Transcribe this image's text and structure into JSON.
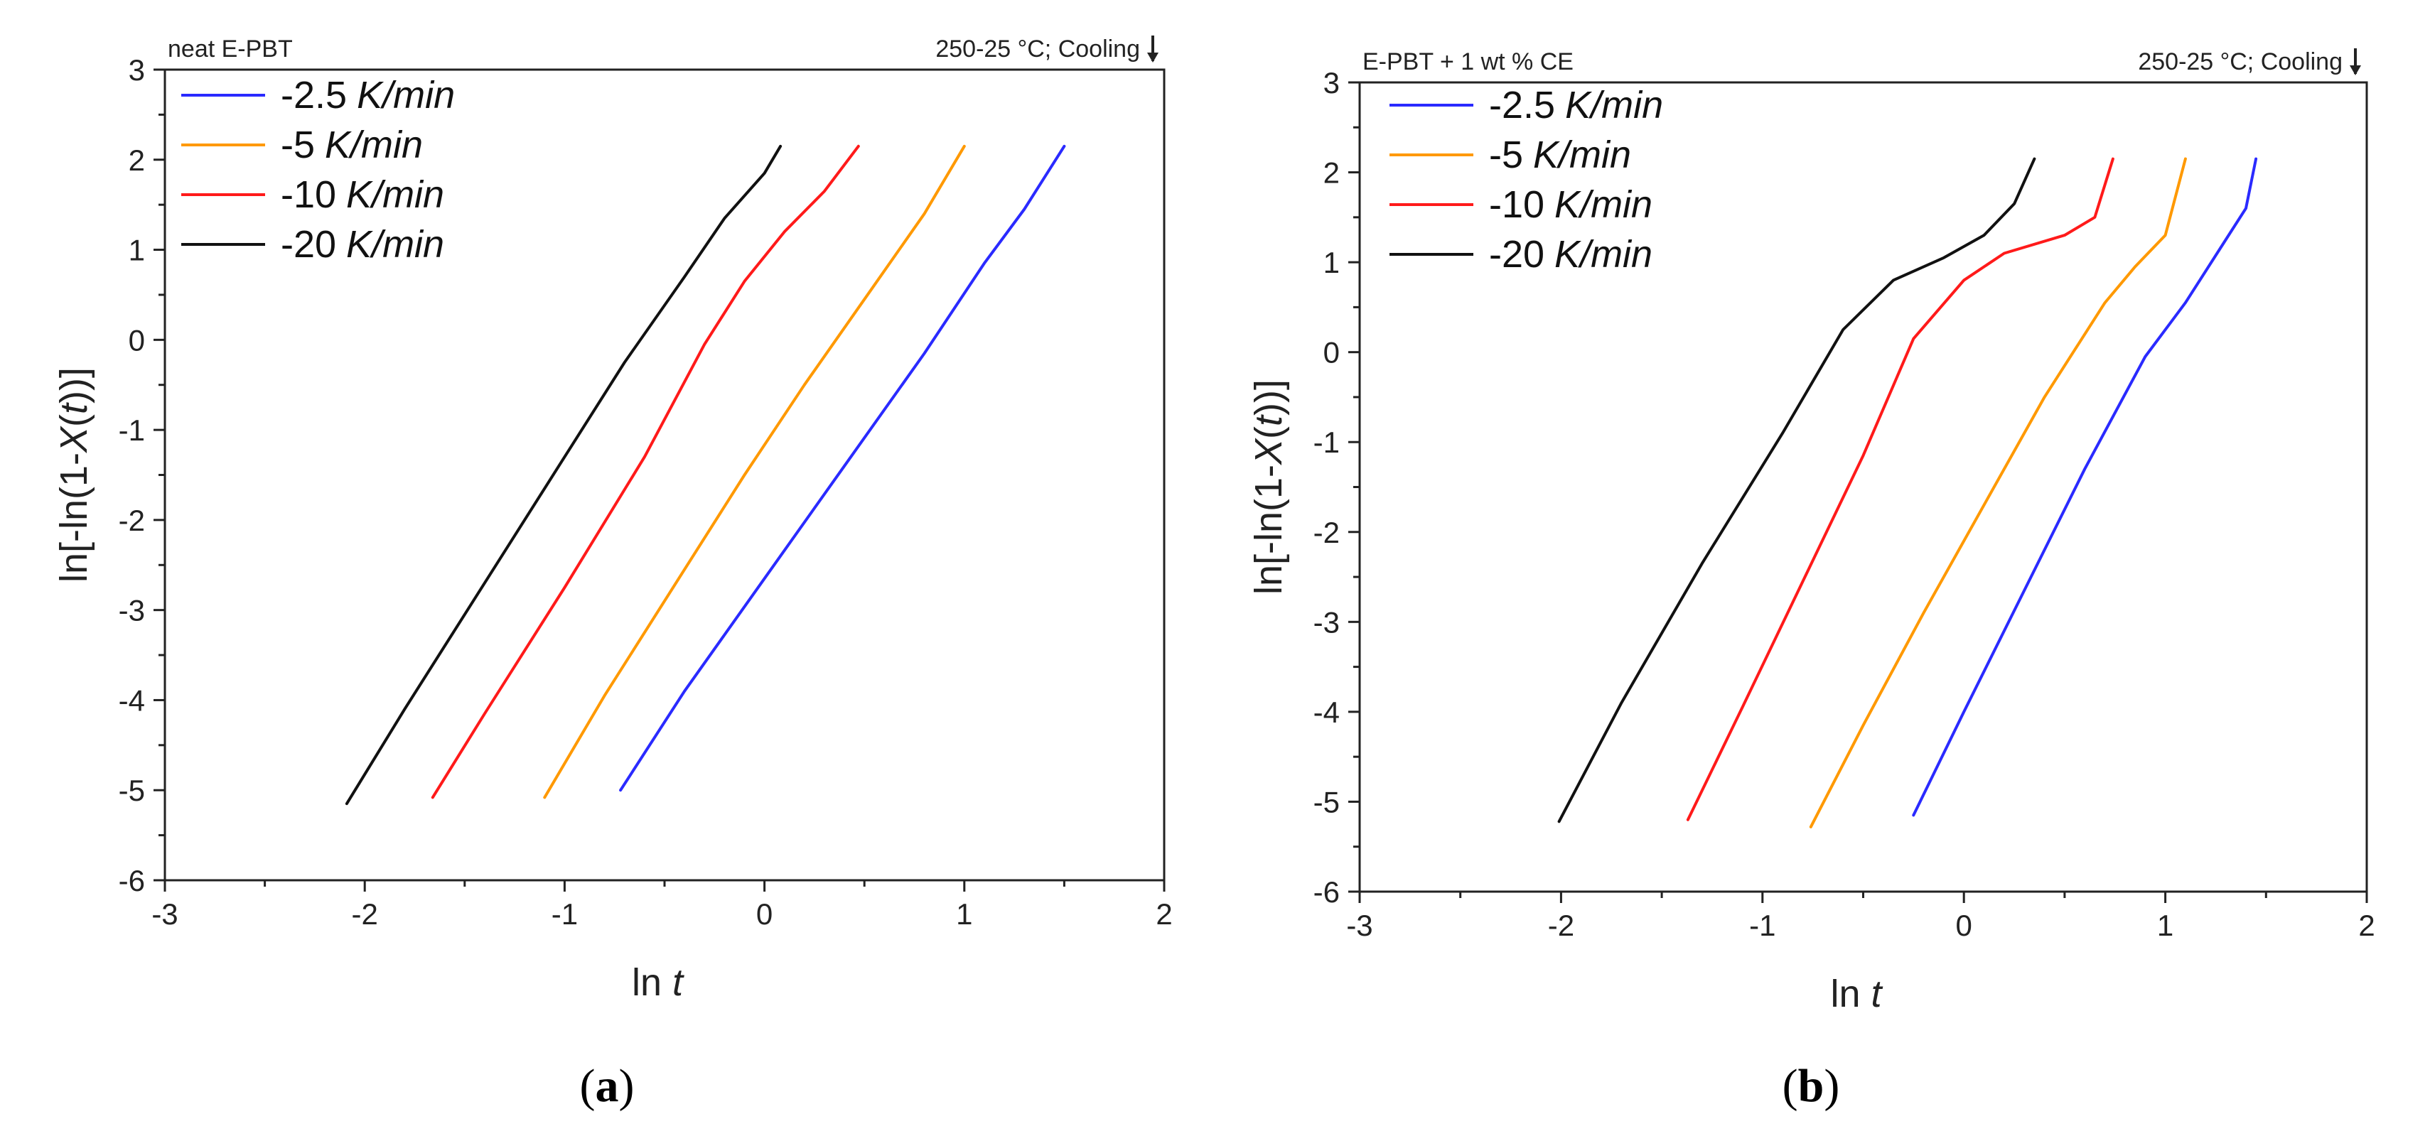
{
  "chart_data": [
    {
      "type": "line",
      "panel_label": "a",
      "top_left_note": "neat E-PBT",
      "top_right_note": "250-25 °C; Cooling",
      "xlabel_main": "ln ",
      "xlabel_var": "t",
      "ylabel_main": "ln[-ln(1-",
      "ylabel_var_x": "X",
      "ylabel_paren_open": "(",
      "ylabel_var_t": "t",
      "ylabel_close": "))]",
      "xlim": [
        -3,
        2
      ],
      "ylim": [
        -6,
        3
      ],
      "xticks": [
        -3,
        -2,
        -1,
        0,
        1,
        2
      ],
      "yticks": [
        -6,
        -5,
        -4,
        -3,
        -2,
        -1,
        0,
        1,
        2,
        3
      ],
      "series": [
        {
          "name": "-2.5",
          "unit": "K/min",
          "color": "#2a2aff",
          "points": [
            [
              -0.72,
              -5.0
            ],
            [
              -0.4,
              -3.9
            ],
            [
              0,
              -2.65
            ],
            [
              0.4,
              -1.4
            ],
            [
              0.8,
              -0.15
            ],
            [
              1.1,
              0.85
            ],
            [
              1.3,
              1.45
            ],
            [
              1.5,
              2.15
            ]
          ]
        },
        {
          "name": "-5",
          "unit": "K/min",
          "color": "#ff9900",
          "points": [
            [
              -1.1,
              -5.08
            ],
            [
              -0.8,
              -3.95
            ],
            [
              -0.4,
              -2.55
            ],
            [
              -0.1,
              -1.5
            ],
            [
              0.2,
              -0.5
            ],
            [
              0.5,
              0.45
            ],
            [
              0.8,
              1.4
            ],
            [
              1.0,
              2.15
            ]
          ]
        },
        {
          "name": "-10",
          "unit": "K/min",
          "color": "#ff1a1a",
          "points": [
            [
              -1.66,
              -5.08
            ],
            [
              -1.4,
              -4.15
            ],
            [
              -1.0,
              -2.75
            ],
            [
              -0.6,
              -1.3
            ],
            [
              -0.3,
              -0.05
            ],
            [
              -0.1,
              0.65
            ],
            [
              0.1,
              1.2
            ],
            [
              0.3,
              1.65
            ],
            [
              0.47,
              2.15
            ]
          ]
        },
        {
          "name": "-20",
          "unit": "K/min",
          "color": "#111111",
          "points": [
            [
              -2.09,
              -5.15
            ],
            [
              -1.8,
              -4.1
            ],
            [
              -1.4,
              -2.7
            ],
            [
              -1.0,
              -1.3
            ],
            [
              -0.7,
              -0.25
            ],
            [
              -0.4,
              0.7
            ],
            [
              -0.2,
              1.35
            ],
            [
              0,
              1.85
            ],
            [
              0.08,
              2.15
            ]
          ]
        }
      ]
    },
    {
      "type": "line",
      "panel_label": "b",
      "top_left_note": "E-PBT + 1 wt % CE",
      "top_right_note": "250-25 °C; Cooling",
      "xlabel_main": "ln ",
      "xlabel_var": "t",
      "ylabel_main": "ln[-ln(1-",
      "ylabel_var_x": "X",
      "ylabel_paren_open": "(",
      "ylabel_var_t": "t",
      "ylabel_close": "))]",
      "xlim": [
        -3,
        2
      ],
      "ylim": [
        -6,
        3
      ],
      "xticks": [
        -3,
        -2,
        -1,
        0,
        1,
        2
      ],
      "yticks": [
        -6,
        -5,
        -4,
        -3,
        -2,
        -1,
        0,
        1,
        2,
        3
      ],
      "series": [
        {
          "name": "-2.5",
          "unit": "K/min",
          "color": "#2a2aff",
          "points": [
            [
              -0.25,
              -5.15
            ],
            [
              0,
              -4.0
            ],
            [
              0.3,
              -2.65
            ],
            [
              0.6,
              -1.3
            ],
            [
              0.9,
              -0.05
            ],
            [
              1.1,
              0.55
            ],
            [
              1.3,
              1.25
            ],
            [
              1.4,
              1.6
            ],
            [
              1.45,
              2.15
            ]
          ]
        },
        {
          "name": "-5",
          "unit": "K/min",
          "color": "#ff9900",
          "points": [
            [
              -0.76,
              -5.28
            ],
            [
              -0.5,
              -4.15
            ],
            [
              -0.2,
              -2.9
            ],
            [
              0.1,
              -1.7
            ],
            [
              0.4,
              -0.5
            ],
            [
              0.7,
              0.55
            ],
            [
              0.85,
              0.95
            ],
            [
              1.0,
              1.3
            ],
            [
              1.1,
              2.15
            ]
          ]
        },
        {
          "name": "-10",
          "unit": "K/min",
          "color": "#ff1a1a",
          "points": [
            [
              -1.37,
              -5.2
            ],
            [
              -1.1,
              -3.95
            ],
            [
              -0.8,
              -2.55
            ],
            [
              -0.5,
              -1.15
            ],
            [
              -0.25,
              0.15
            ],
            [
              0,
              0.8
            ],
            [
              0.2,
              1.1
            ],
            [
              0.5,
              1.3
            ],
            [
              0.65,
              1.5
            ],
            [
              0.74,
              2.15
            ]
          ]
        },
        {
          "name": "-20",
          "unit": "K/min",
          "color": "#111111",
          "points": [
            [
              -2.01,
              -5.22
            ],
            [
              -1.7,
              -3.9
            ],
            [
              -1.3,
              -2.35
            ],
            [
              -0.9,
              -0.9
            ],
            [
              -0.6,
              0.25
            ],
            [
              -0.35,
              0.8
            ],
            [
              -0.1,
              1.05
            ],
            [
              0.1,
              1.3
            ],
            [
              0.25,
              1.65
            ],
            [
              0.35,
              2.15
            ]
          ]
        }
      ]
    }
  ]
}
